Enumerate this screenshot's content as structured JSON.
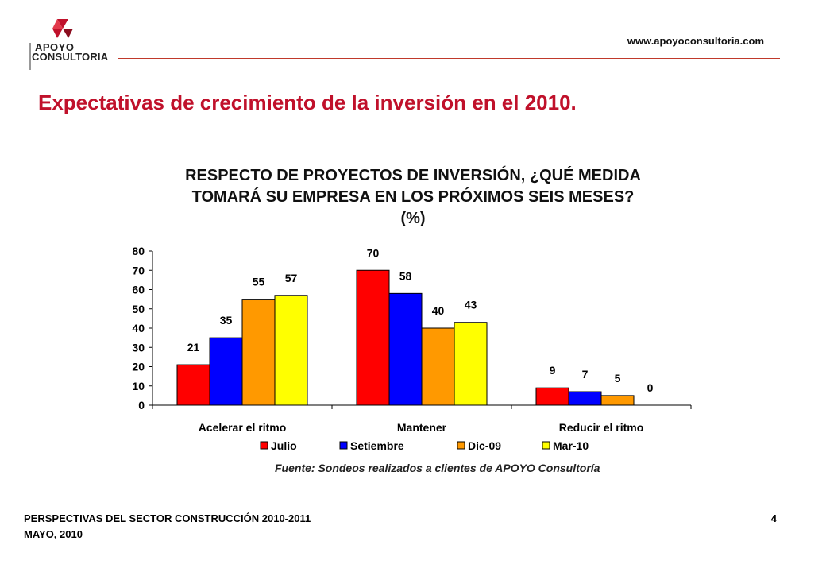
{
  "header": {
    "logo_line1": "APOYO",
    "logo_line2": "CONSULTORIA",
    "website": "www.apoyoconsultoria.com"
  },
  "slide_title": "Expectativas de crecimiento de la inversión en el 2010.",
  "source": "Fuente: Sondeos realizados a clientes de APOYO Consultoría",
  "footer": {
    "line1": "PERSPECTIVAS DEL SECTOR CONSTRUCCIÓN 2010-2011",
    "line2": "MAYO, 2010",
    "page_number": "4"
  },
  "chart_data": {
    "type": "bar",
    "title_line1": "RESPECTO DE PROYECTOS DE INVERSIÓN, ¿QUÉ MEDIDA",
    "title_line2": "TOMARÁ SU EMPRESA EN LOS PRÓXIMOS SEIS MESES?",
    "unit": "(%)",
    "categories": [
      "Acelerar el ritmo",
      "Mantener",
      "Reducir el ritmo"
    ],
    "series": [
      {
        "name": "Julio",
        "color": "#ff0000",
        "values": [
          21,
          70,
          9
        ]
      },
      {
        "name": "Setiembre",
        "color": "#0000ff",
        "values": [
          35,
          58,
          7
        ]
      },
      {
        "name": "Dic-09",
        "color": "#ff9900",
        "values": [
          55,
          40,
          5
        ]
      },
      {
        "name": "Mar-10",
        "color": "#ffff00",
        "values": [
          57,
          43,
          0
        ]
      }
    ],
    "ylim": [
      0,
      80
    ],
    "yticks": [
      0,
      10,
      20,
      30,
      40,
      50,
      60,
      70,
      80
    ],
    "legend": "bottom",
    "grid": false
  }
}
